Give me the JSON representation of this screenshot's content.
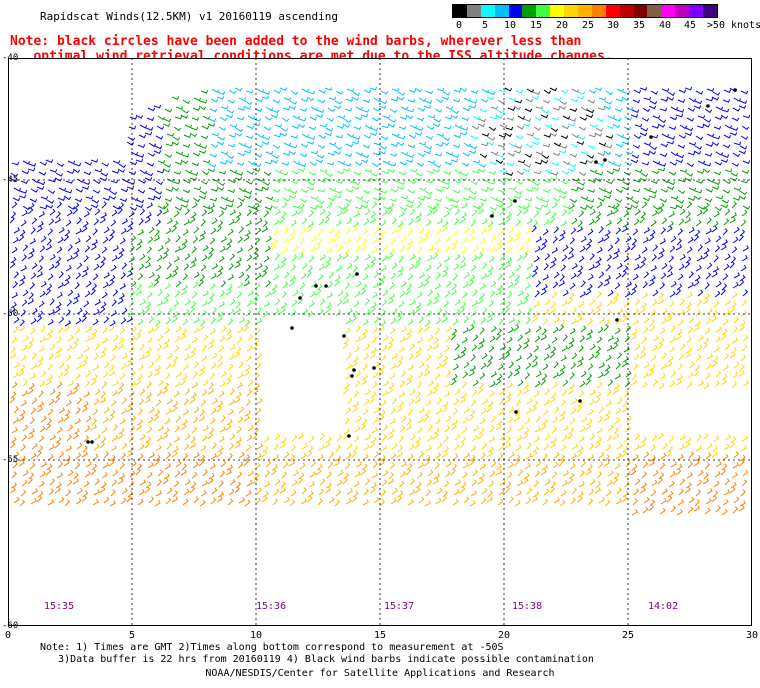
{
  "title": "Rapidscat Winds(12.5KM) v1 20160119 ascending",
  "note_line1": "Note: black circles have been added to the wind barbs, wherever less than",
  "note_line2": "   optimal wind retrieval conditions are met due to the ISS altitude changes.",
  "colorbar": {
    "colors": [
      "#000000",
      "#808080",
      "#00ffff",
      "#00c0ff",
      "#0000ff",
      "#00a000",
      "#40ff40",
      "#ffff00",
      "#ffd700",
      "#ffb000",
      "#ff8000",
      "#ff0000",
      "#c00000",
      "#800000",
      "#806040",
      "#ff00ff",
      "#c000c0",
      "#8000ff",
      "#400080"
    ],
    "labels": [
      "0",
      "5",
      "10",
      "15",
      "20",
      "25",
      "30",
      "35",
      "40",
      "45",
      ">50 knots"
    ]
  },
  "y_axis": {
    "labels": [
      "-40",
      "-45",
      "-50",
      "-55",
      "-60"
    ]
  },
  "x_axis": {
    "labels": [
      "0",
      "5",
      "10",
      "15",
      "20",
      "25",
      "30"
    ]
  },
  "time_labels": [
    "15:35",
    "15:36",
    "15:37",
    "15:38",
    "14:02"
  ],
  "footnote_line1": "Note: 1) Times are GMT 2)Times along bottom correspond to measurement at -50S",
  "footnote_line2": "   3)Data buffer is 22 hrs from 20160119 4) Black wind barbs indicate possible contamination",
  "credit": "NOAA/NESDIS/Center for Satellite Applications and Research"
}
